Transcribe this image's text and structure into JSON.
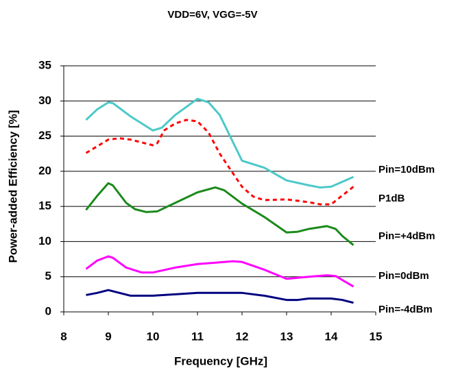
{
  "chart_data": {
    "type": "line",
    "title": "VDD=6V, VGG=-5V",
    "xlabel": "Frequency [GHz]",
    "ylabel": "Power-added Efficiency [%]",
    "xlim": [
      8,
      15
    ],
    "xticks": [
      8,
      9,
      10,
      11,
      12,
      13,
      14,
      15
    ],
    "ylim": [
      0,
      35
    ],
    "yticks": [
      0,
      5,
      10,
      15,
      20,
      25,
      30,
      35
    ],
    "grid": true,
    "series": [
      {
        "name": "Pin=10dBm",
        "color": "#4cc8c8",
        "dashed": false,
        "x": [
          8.5,
          8.75,
          9,
          9.1,
          9.5,
          10,
          10.2,
          10.5,
          11,
          11.25,
          11.5,
          12,
          12.25,
          12.5,
          13,
          13.5,
          13.75,
          14,
          14.5
        ],
        "values": [
          27.3,
          28.8,
          29.8,
          29.7,
          27.8,
          25.8,
          26.2,
          28,
          30.3,
          29.8,
          28,
          21.5,
          21,
          20.5,
          18.7,
          18,
          17.7,
          17.8,
          19.2
        ]
      },
      {
        "name": "P1dB",
        "color": "#ff0000",
        "dashed": true,
        "x": [
          8.5,
          9,
          9.25,
          9.5,
          10,
          10.1,
          10.25,
          10.5,
          10.75,
          11,
          11.25,
          11.5,
          12,
          12.25,
          12.5,
          13,
          13.5,
          13.75,
          14,
          14.5
        ],
        "values": [
          22.6,
          24.5,
          24.7,
          24.5,
          23.7,
          24,
          25.8,
          26.8,
          27.3,
          27.1,
          25.5,
          22.5,
          17.8,
          16.4,
          15.9,
          16,
          15.6,
          15.3,
          15.3,
          17.8
        ]
      },
      {
        "name": "Pin=+4dBm",
        "color": "#1a8a1a",
        "dashed": false,
        "x": [
          8.5,
          8.75,
          9,
          9.1,
          9.4,
          9.6,
          9.85,
          10.1,
          10.5,
          11,
          11.4,
          11.6,
          12,
          12.5,
          13,
          13.25,
          13.5,
          13.9,
          14.1,
          14.25,
          14.5
        ],
        "values": [
          14.5,
          16.5,
          18.3,
          18,
          15.5,
          14.6,
          14.2,
          14.3,
          15.5,
          17,
          17.7,
          17.3,
          15.4,
          13.5,
          11.3,
          11.4,
          11.8,
          12.2,
          11.8,
          10.8,
          9.5
        ]
      },
      {
        "name": "Pin=0dBm",
        "color": "#ff00ff",
        "dashed": false,
        "x": [
          8.5,
          8.75,
          9,
          9.1,
          9.4,
          9.75,
          10,
          10.5,
          11,
          11.4,
          11.8,
          12,
          12.5,
          13,
          13.5,
          13.9,
          14.1,
          14.5
        ],
        "values": [
          6.1,
          7.3,
          7.9,
          7.7,
          6.3,
          5.6,
          5.6,
          6.3,
          6.8,
          7,
          7.2,
          7.1,
          6,
          4.7,
          5,
          5.2,
          5.1,
          3.6
        ]
      },
      {
        "name": "Pin=-4dBm",
        "color": "#000080",
        "dashed": false,
        "x": [
          8.5,
          8.75,
          9,
          9.5,
          10,
          10.5,
          11,
          11.5,
          12,
          12.5,
          13,
          13.25,
          13.5,
          14,
          14.25,
          14.5
        ],
        "values": [
          2.4,
          2.7,
          3.1,
          2.3,
          2.3,
          2.5,
          2.7,
          2.7,
          2.7,
          2.3,
          1.7,
          1.7,
          1.9,
          1.9,
          1.7,
          1.3
        ]
      }
    ]
  }
}
